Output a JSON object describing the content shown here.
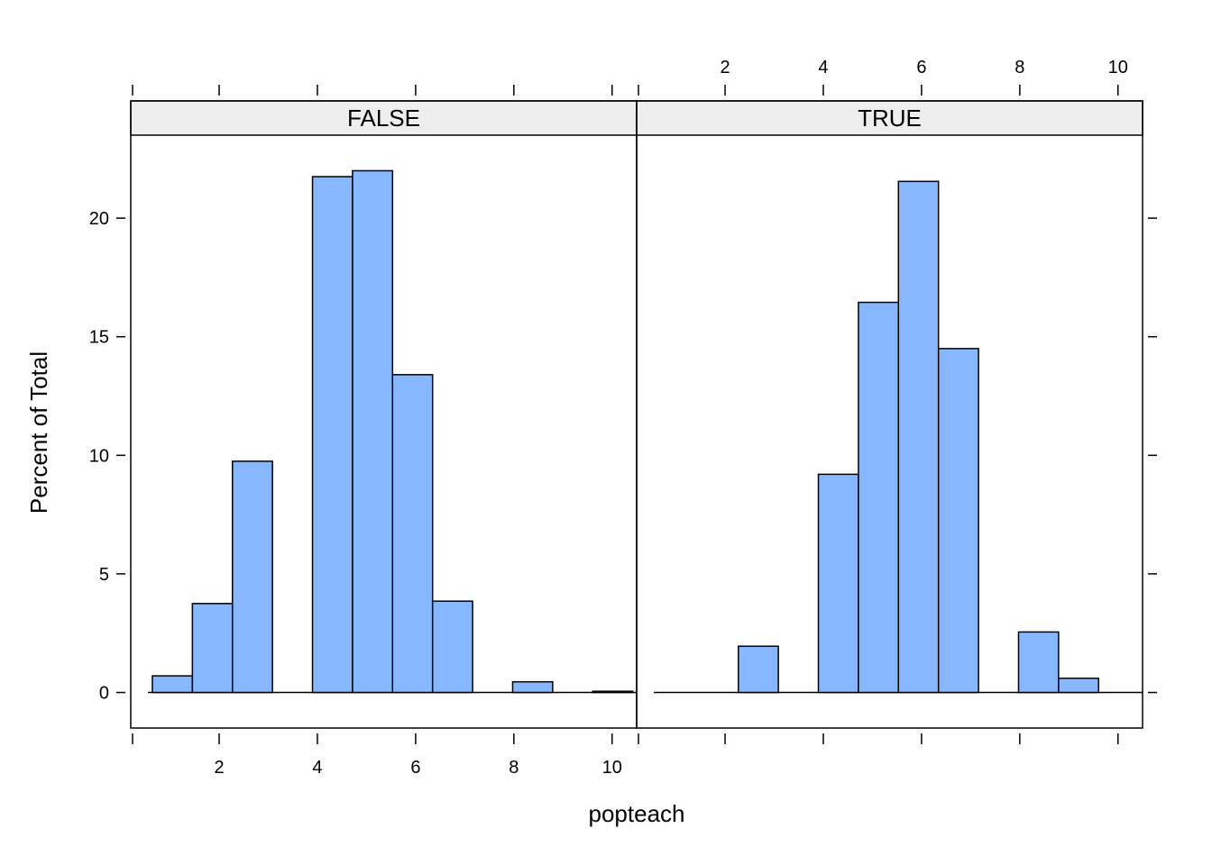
{
  "chart_data": {
    "type": "bar",
    "xlabel": "popteach",
    "ylabel": "Percent of Total",
    "xlim": [
      0.2,
      10.5
    ],
    "ylim": [
      -1.5,
      23.5
    ],
    "x_ticks": [
      "2",
      "4",
      "6",
      "8",
      "10"
    ],
    "y_ticks": [
      "0",
      "5",
      "10",
      "15",
      "20"
    ],
    "bin_width": 0.815,
    "bar_color": "#87b8ff",
    "strip_color": "#eeeeee",
    "panels": [
      {
        "name": "FALSE",
        "baseline_range": [
          0.55,
          10.5
        ],
        "bins": [
          {
            "x_start": 0.64,
            "value": 0.7
          },
          {
            "x_start": 1.455,
            "value": 3.75
          },
          {
            "x_start": 2.27,
            "value": 9.75
          },
          {
            "x_start": 3.085,
            "value": 0
          },
          {
            "x_start": 3.9,
            "value": 21.75
          },
          {
            "x_start": 4.715,
            "value": 22.0
          },
          {
            "x_start": 5.53,
            "value": 13.4
          },
          {
            "x_start": 6.345,
            "value": 3.85
          },
          {
            "x_start": 7.16,
            "value": 0
          },
          {
            "x_start": 7.975,
            "value": 0.45
          },
          {
            "x_start": 8.79,
            "value": 0
          },
          {
            "x_start": 9.605,
            "value": 0.05
          }
        ]
      },
      {
        "name": "TRUE",
        "baseline_range": [
          0.55,
          10.5
        ],
        "bins": [
          {
            "x_start": 0.64,
            "value": 0
          },
          {
            "x_start": 1.455,
            "value": 0
          },
          {
            "x_start": 2.27,
            "value": 1.95
          },
          {
            "x_start": 3.085,
            "value": 0
          },
          {
            "x_start": 3.9,
            "value": 9.2
          },
          {
            "x_start": 4.715,
            "value": 16.45
          },
          {
            "x_start": 5.53,
            "value": 21.55
          },
          {
            "x_start": 6.345,
            "value": 14.5
          },
          {
            "x_start": 7.16,
            "value": 0
          },
          {
            "x_start": 7.975,
            "value": 2.55
          },
          {
            "x_start": 8.79,
            "value": 0.6
          },
          {
            "x_start": 9.605,
            "value": 0
          }
        ]
      }
    ]
  }
}
